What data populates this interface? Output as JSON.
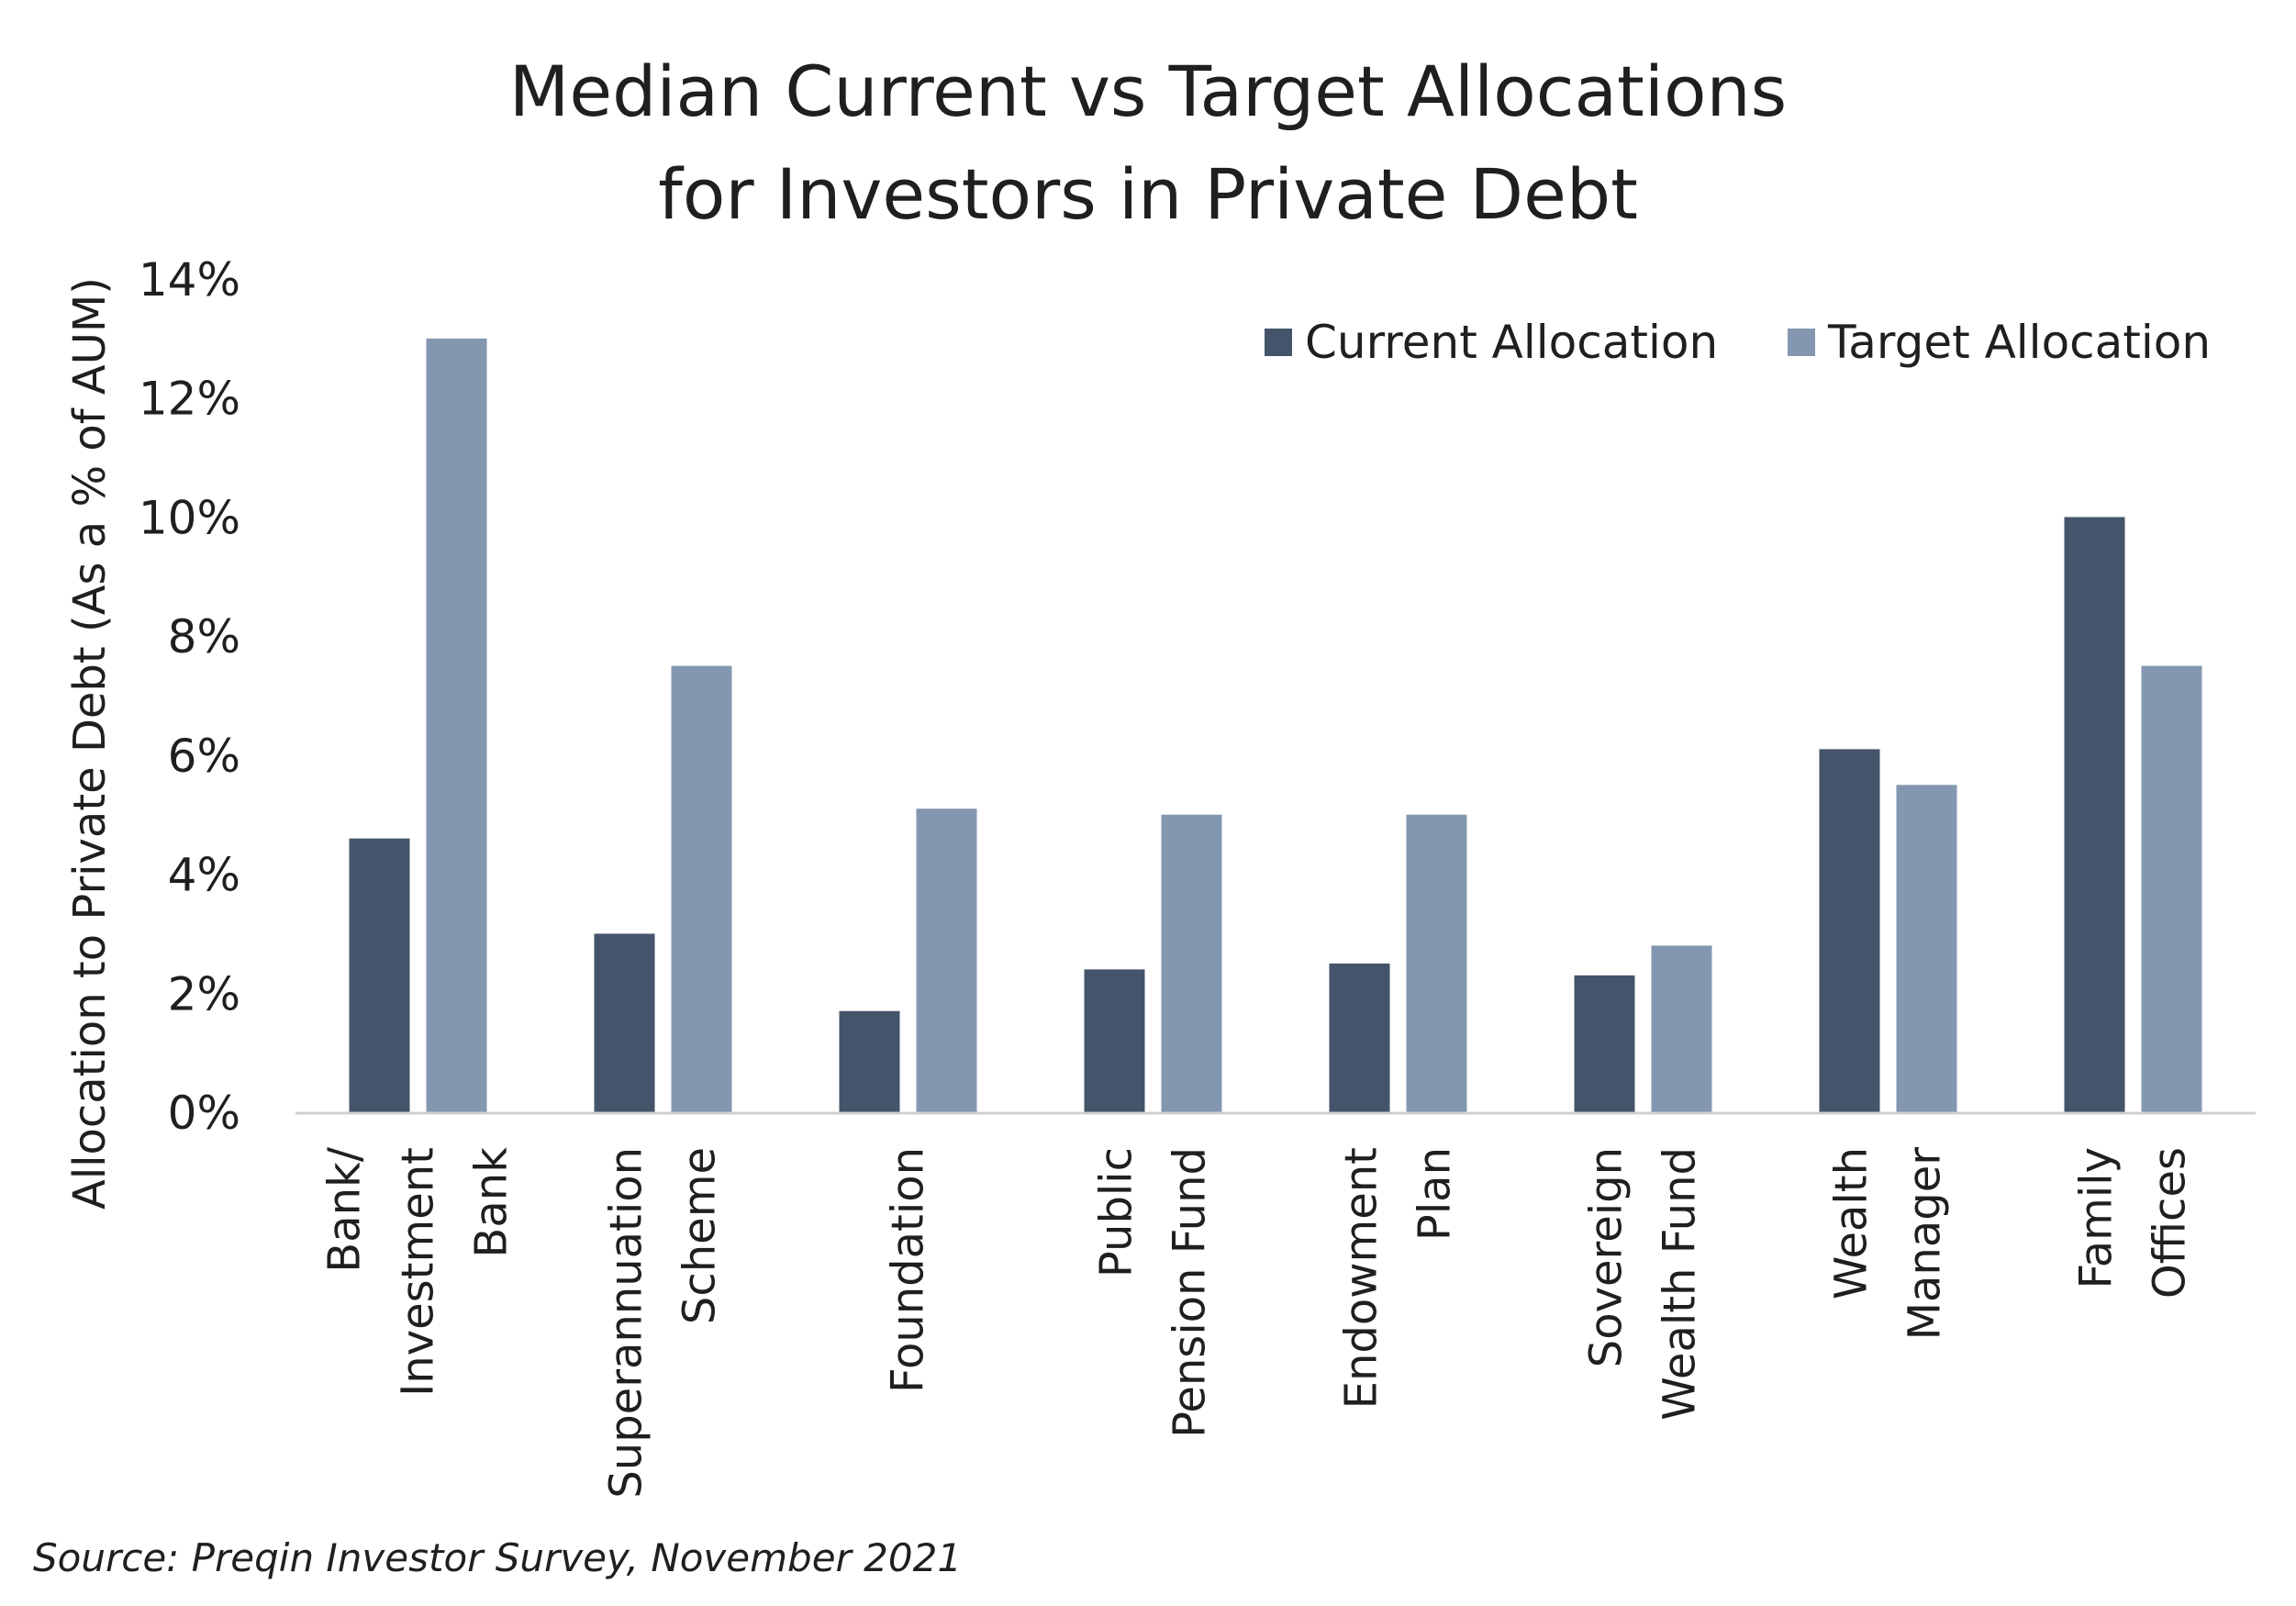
{
  "chart_data": {
    "type": "bar",
    "title": [
      "Median Current vs Target Allocations",
      "for Investors in Private Debt"
    ],
    "ylabel": "Allocation to Private Debt (As a % of AUM)",
    "ylim": [
      0,
      14
    ],
    "yticks": [
      0,
      2,
      4,
      6,
      8,
      10,
      12,
      14
    ],
    "ytick_labels": [
      "0%",
      "2%",
      "4%",
      "6%",
      "8%",
      "10%",
      "12%",
      "14%"
    ],
    "grid": false,
    "legend_position": "top-right",
    "categories": [
      [
        "Bank/",
        "Investment",
        "Bank"
      ],
      [
        "Superannuation",
        "Scheme"
      ],
      [
        "Foundation"
      ],
      [
        "Public",
        "Pension Fund"
      ],
      [
        "Endowment",
        "Plan"
      ],
      [
        "Sovereign",
        "Wealth Fund"
      ],
      [
        "Wealth",
        "Manager"
      ],
      [
        "Family",
        "Offices"
      ]
    ],
    "series": [
      {
        "name": "Current Allocation",
        "color": "#44546a",
        "values": [
          4.6,
          3.0,
          1.7,
          2.4,
          2.5,
          2.3,
          6.1,
          10.0
        ]
      },
      {
        "name": "Target Allocation",
        "color": "#8497b0",
        "values": [
          13.0,
          7.5,
          5.1,
          5.0,
          5.0,
          2.8,
          5.5,
          7.5
        ]
      }
    ],
    "source": "Source: Preqin Investor Survey, November 2021"
  }
}
